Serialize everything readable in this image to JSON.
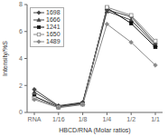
{
  "chart_data": {
    "type": "line",
    "xlabel": "HBCD/RNA (Molar ratios)",
    "ylabel": "Intensity/%S",
    "categories": [
      "RNA",
      "1/16",
      "1/8",
      "1/4",
      "1/2",
      "1/1"
    ],
    "series": [
      {
        "name": "1698",
        "color": "#444444",
        "marker": "diamond",
        "values": [
          1.7,
          0.5,
          0.75,
          7.6,
          7.1,
          5.1
        ]
      },
      {
        "name": "1666",
        "color": "#444444",
        "marker": "triangle",
        "values": [
          1.5,
          0.45,
          0.7,
          7.5,
          6.85,
          5.0
        ]
      },
      {
        "name": "1241",
        "color": "#111111",
        "marker": "square",
        "values": [
          1.2,
          0.4,
          0.65,
          7.75,
          6.6,
          4.85
        ]
      },
      {
        "name": "1650",
        "color": "#888888",
        "marker": "square-open",
        "values": [
          1.05,
          0.38,
          0.6,
          7.8,
          7.2,
          5.3
        ]
      },
      {
        "name": "1489",
        "color": "#888888",
        "marker": "diamond",
        "values": [
          0.95,
          0.35,
          0.58,
          6.55,
          5.2,
          3.5
        ]
      }
    ],
    "ylim": [
      0,
      8
    ],
    "yticks": [
      0,
      2,
      4,
      6,
      8
    ],
    "grid": false,
    "legend": "upper left"
  }
}
